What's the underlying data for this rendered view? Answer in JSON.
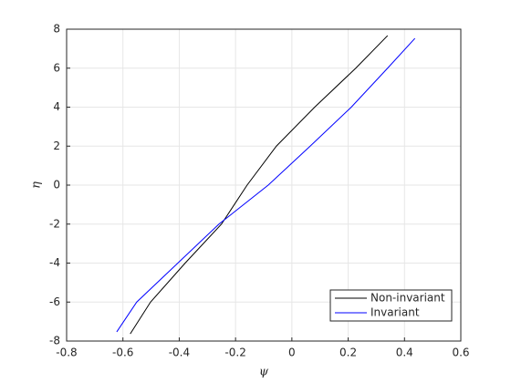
{
  "chart_data": {
    "type": "line",
    "xlabel": "ψ",
    "ylabel": "η",
    "xlim": [
      -0.8,
      0.6
    ],
    "xticks": [
      -0.8,
      -0.6,
      -0.4,
      -0.2,
      0,
      0.2,
      0.4,
      0.6
    ],
    "ylim": [
      -8,
      8
    ],
    "yticks": [
      -8,
      -6,
      -4,
      -2,
      0,
      2,
      4,
      6,
      8
    ],
    "grid": true,
    "legend": "southeast",
    "series": [
      {
        "name": "Non-invariant",
        "color": "#000000",
        "x": [
          -0.574,
          -0.502,
          -0.379,
          -0.25,
          -0.159,
          -0.055,
          0.081,
          0.227,
          0.34
        ],
        "values": [
          -7.63,
          -6,
          -4,
          -2,
          0,
          2,
          4,
          6,
          7.67
        ]
      },
      {
        "name": "Invariant",
        "color": "#0000ff",
        "x": [
          -0.622,
          -0.551,
          -0.405,
          -0.259,
          -0.084,
          0.065,
          0.211,
          0.34,
          0.437
        ],
        "values": [
          -7.53,
          -6,
          -4,
          -2,
          0,
          2,
          4,
          6,
          7.53
        ]
      }
    ]
  }
}
